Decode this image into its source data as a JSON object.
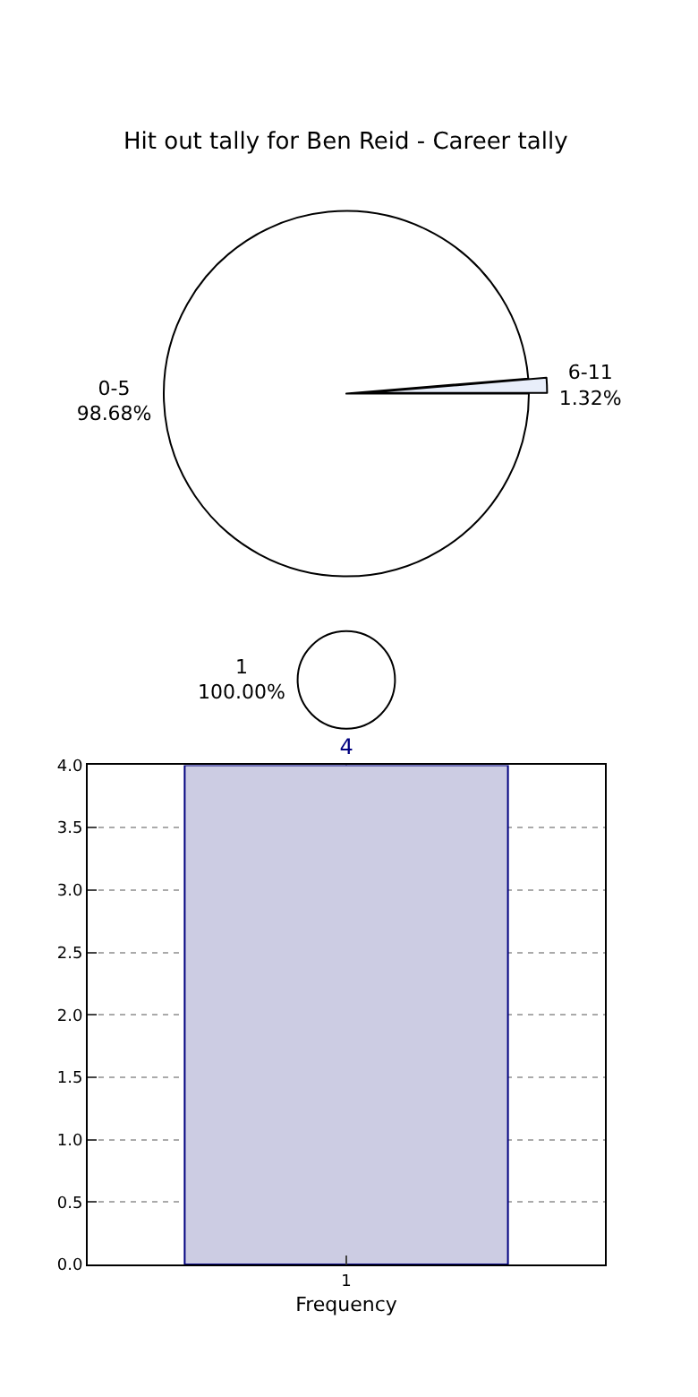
{
  "chart_data": [
    {
      "type": "pie",
      "title": "Hit out tally for Ben Reid - Career tally",
      "categories": [
        "0-5",
        "6-11"
      ],
      "values": [
        98.68,
        1.32
      ],
      "colors": [
        "#ffffff",
        "#e8eefa"
      ],
      "value_labels": [
        "98.68%",
        "1.32%"
      ]
    },
    {
      "type": "pie",
      "categories": [
        "1"
      ],
      "values": [
        100
      ],
      "colors": [
        "#ffffff"
      ],
      "value_labels": [
        "100.00%"
      ]
    },
    {
      "type": "bar",
      "categories": [
        "1"
      ],
      "values": [
        4
      ],
      "color": "#ccccE3",
      "xlabel": "Frequency",
      "ylim": [
        0,
        4
      ],
      "yticks": [
        {
          "value": 0,
          "label": "0.0"
        },
        0.5,
        {
          "value": 1,
          "label": "1.0"
        },
        1.5,
        {
          "value": 2,
          "label": "2.0"
        },
        2.5,
        {
          "value": 3,
          "label": "3.0"
        },
        3.5,
        {
          "value": 4,
          "label": "4.0"
        }
      ],
      "grid": true,
      "data_labels": true
    }
  ]
}
